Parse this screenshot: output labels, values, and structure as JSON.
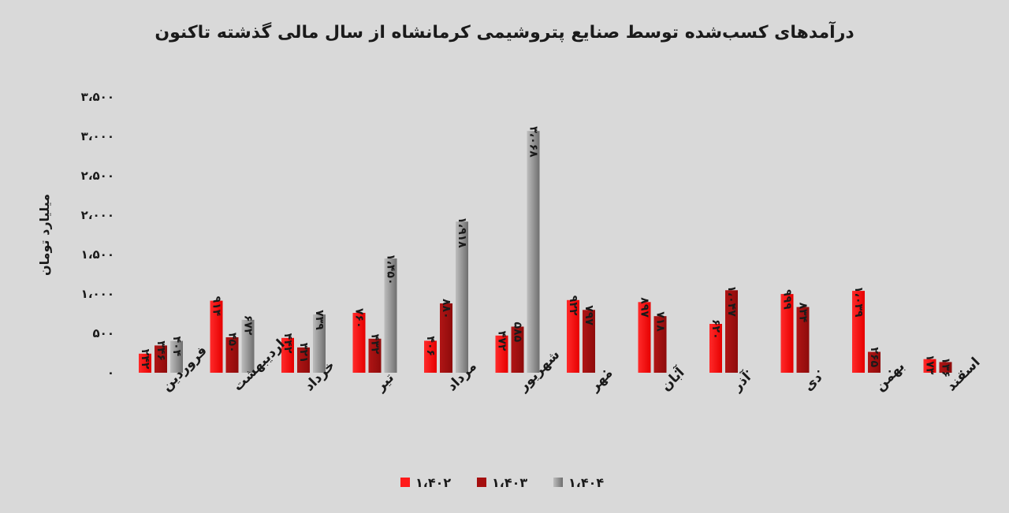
{
  "chart_data": {
    "type": "bar",
    "title": "درآمدهای کسب‌شده توسط صنایع پتروشیمی کرمانشاه از سال مالی گذشته تاکنون",
    "ylabel": "میلیارد تومان",
    "xlabel": "",
    "ylim": [
      0,
      3500
    ],
    "yticks": [
      0,
      500,
      1000,
      1500,
      2000,
      2500,
      3000,
      3500
    ],
    "ytick_labels": [
      "۰",
      "۵۰۰",
      "۱،۰۰۰",
      "۱،۵۰۰",
      "۲،۰۰۰",
      "۲،۵۰۰",
      "۳،۰۰۰",
      "۳،۵۰۰"
    ],
    "grid": false,
    "legend_position": "bottom",
    "categories": [
      "فروردین",
      "اردیبهشت",
      "خرداد",
      "تیر",
      "مرداد",
      "شهریور",
      "مهر",
      "آبان",
      "آذر",
      "دی",
      "بهمن",
      "اسفند"
    ],
    "series": [
      {
        "name": "۱،۴۰۲",
        "color": "#ff1a1a",
        "values": [
          242,
          914,
          442,
          760,
          406,
          472,
          922,
          897,
          620,
          999,
          1039,
          173
        ],
        "labels": [
          "۲۴۲",
          "۹۱۴",
          "۴۴۲",
          "۷۶۰",
          "۴۰۶",
          "۴۷۲",
          "۹۲۲",
          "۸۹۷",
          "۶۲۰",
          "۹۹۹",
          "۱،۰۳۹",
          "۱۷۳"
        ]
      },
      {
        "name": "۱،۴۰۳",
        "color": "#a50f0f",
        "values": [
          346,
          450,
          321,
          432,
          880,
          585,
          797,
          718,
          1047,
          834,
          265,
          136
        ],
        "labels": [
          "۳۴۶",
          "۴۵۰",
          "۳۲۱",
          "۴۳۲",
          "۸۸۰",
          "۵۸۵",
          "۷۹۷",
          "۷۱۸",
          "۱،۰۴۷",
          "۸۳۴",
          "۲۶۵",
          "۱۳۶"
        ]
      },
      {
        "name": "۱،۴۰۴",
        "color": "#8c8c8c",
        "values": [
          404,
          672,
          739,
          1450,
          1918,
          3068,
          0,
          0,
          0,
          0,
          0,
          0
        ],
        "labels": [
          "۴۰۴",
          "۶۷۲",
          "۷۳۹",
          "۱،۴۵۰",
          "۱،۹۱۸",
          "۳،۰۶۸",
          "۰",
          "۰",
          "۰",
          "۰",
          "۰",
          "۰"
        ]
      }
    ]
  }
}
